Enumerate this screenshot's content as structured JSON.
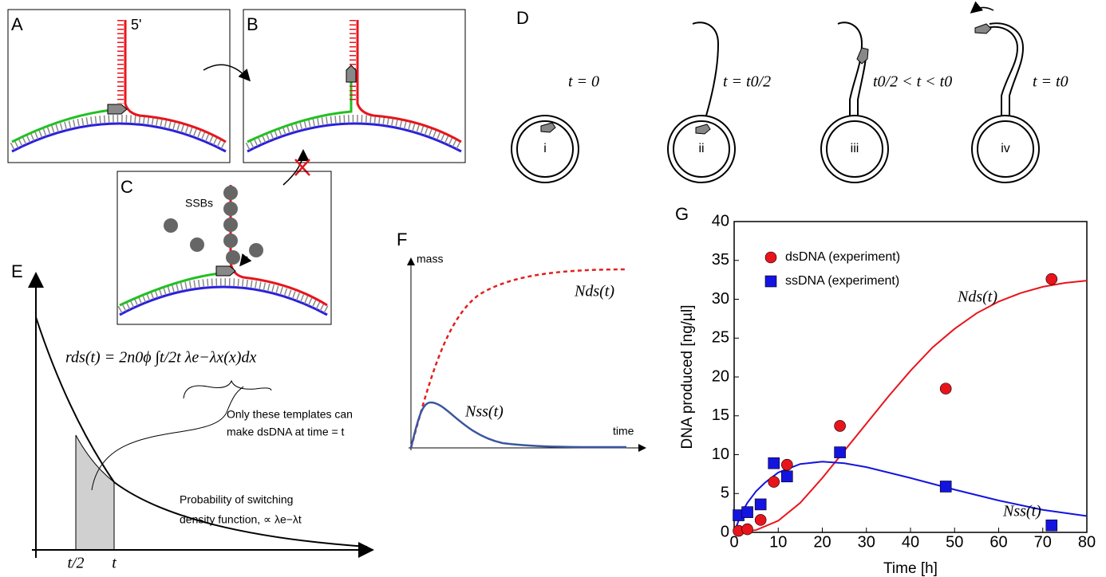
{
  "figure": {
    "panel_labels": [
      "A",
      "B",
      "C",
      "D",
      "E",
      "F",
      "G"
    ],
    "panel_a": {
      "strand_end": "5'"
    },
    "panel_c": {
      "label": "SSBs"
    },
    "panel_d": {
      "times": [
        "t = 0",
        "t = t0/2",
        "t0/2 < t < t0",
        "t = t0"
      ],
      "stages": [
        "i",
        "ii",
        "iii",
        "iv"
      ]
    },
    "panel_e": {
      "formula": "rds(t) = 2n0ϕ ∫t/2t λe−λx(x)dx",
      "note": [
        "Only these templates can",
        "make dsDNA at time = t"
      ],
      "density": [
        "Probability of switching",
        "density function,  ∝ λe−λt"
      ],
      "ticks": [
        "t/2",
        "t"
      ]
    },
    "panel_f": {
      "y_label": "mass",
      "x_label": "time",
      "curve_labels": [
        "Nds(t)",
        "Nss(t)"
      ]
    }
  },
  "chart_data": {
    "type": "scatter",
    "x_label": "Time [h]",
    "y_label": "DNA produced [ng/µl]",
    "xlim": [
      0,
      80
    ],
    "ylim": [
      0,
      40
    ],
    "xticks": [
      0,
      10,
      20,
      30,
      40,
      50,
      60,
      70,
      80
    ],
    "yticks": [
      0,
      5,
      10,
      15,
      20,
      25,
      30,
      35,
      40
    ],
    "legend": "upper left",
    "series": [
      {
        "name": "dsDNA (experiment)",
        "color": "#e8141c",
        "marker": "circle",
        "x": [
          1,
          3,
          6,
          9,
          12,
          24,
          48,
          72
        ],
        "values": [
          0.2,
          0.4,
          1.6,
          6.5,
          8.7,
          13.7,
          18.5,
          32.6
        ]
      },
      {
        "name": "ssDNA (experiment)",
        "color": "#1414e0",
        "marker": "square",
        "x": [
          1,
          3,
          6,
          9,
          12,
          24,
          48,
          72
        ],
        "values": [
          2.2,
          2.6,
          3.6,
          8.9,
          7.2,
          10.3,
          5.9,
          0.9
        ]
      }
    ],
    "curves": [
      {
        "label": "Nds(t)",
        "color": "#e8141c",
        "x": [
          0,
          5,
          10,
          15,
          20,
          25,
          30,
          35,
          40,
          45,
          50,
          55,
          60,
          65,
          70,
          75,
          80
        ],
        "values": [
          0,
          0.3,
          1.5,
          3.8,
          7,
          10.5,
          14,
          17.5,
          20.8,
          23.8,
          26.2,
          28.2,
          29.7,
          30.8,
          31.6,
          32.1,
          32.4
        ]
      },
      {
        "label": "Nss(t)",
        "color": "#1414e0",
        "x": [
          0,
          1,
          2,
          3,
          5,
          7,
          10,
          15,
          20,
          25,
          30,
          40,
          50,
          60,
          70,
          80
        ],
        "values": [
          0,
          1.5,
          2.8,
          3.8,
          5.3,
          6.4,
          7.7,
          8.8,
          9.1,
          8.9,
          8.4,
          7.0,
          5.5,
          4.1,
          2.9,
          2.1
        ]
      }
    ]
  }
}
